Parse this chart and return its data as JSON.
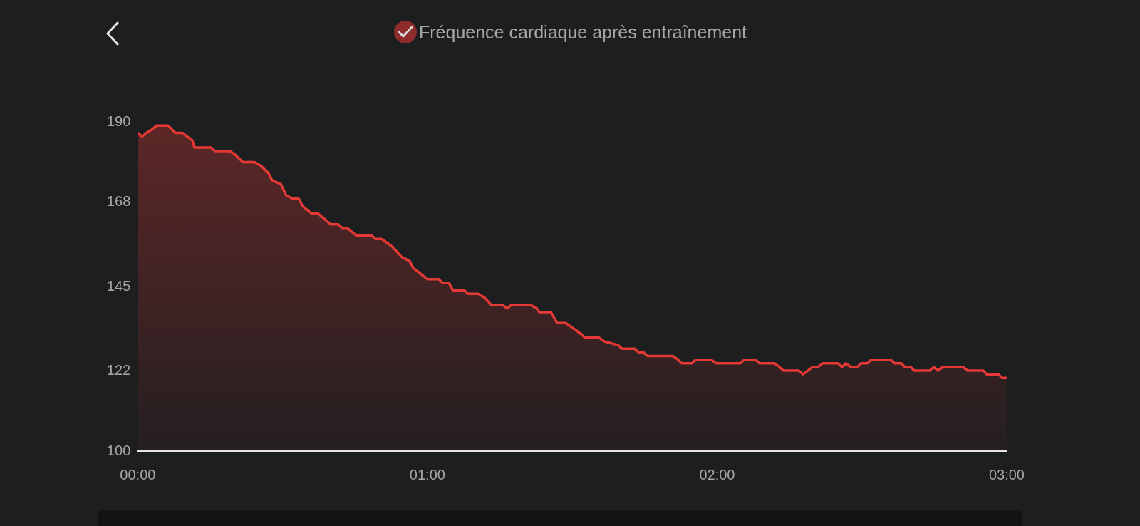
{
  "chart_data": {
    "type": "area",
    "title": "Fréquence cardiaque après entraînement",
    "x": [
      0,
      0.015,
      0.03,
      0.051,
      0.065,
      0.104,
      0.117,
      0.13,
      0.154,
      0.17,
      0.188,
      0.196,
      0.253,
      0.267,
      0.319,
      0.337,
      0.363,
      0.403,
      0.425,
      0.451,
      0.464,
      0.494,
      0.512,
      0.534,
      0.556,
      0.569,
      0.6,
      0.622,
      0.666,
      0.692,
      0.706,
      0.723,
      0.754,
      0.807,
      0.82,
      0.842,
      0.877,
      0.912,
      0.938,
      0.952,
      1,
      1.039,
      1.052,
      1.074,
      1.088,
      1.127,
      1.14,
      1.175,
      1.197,
      1.22,
      1.259,
      1.275,
      1.29,
      1.356,
      1.377,
      1.386,
      1.426,
      1.448,
      1.478,
      1.496,
      1.531,
      1.544,
      1.593,
      1.61,
      1.658,
      1.672,
      1.716,
      1.729,
      1.746,
      1.76,
      1.847,
      1.865,
      1.878,
      1.913,
      1.926,
      1.979,
      1.997,
      2.08,
      2.093,
      2.133,
      2.146,
      2.198,
      2.216,
      2.229,
      2.282,
      2.297,
      2.313,
      2.33,
      2.348,
      2.365,
      2.418,
      2.431,
      2.444,
      2.462,
      2.484,
      2.497,
      2.519,
      2.532,
      2.599,
      2.614,
      2.636,
      2.648,
      2.669,
      2.681,
      2.734,
      2.748,
      2.763,
      2.779,
      2.849,
      2.865,
      2.919,
      2.931,
      2.972,
      2.984,
      3
    ],
    "series": [
      {
        "color": "#e53935",
        "values": [
          187,
          186,
          187,
          188,
          189,
          189,
          188,
          187,
          187,
          186,
          185,
          183,
          183,
          182,
          182,
          181,
          179,
          179,
          178,
          176,
          174,
          173,
          170,
          169,
          169,
          167,
          165,
          165,
          162,
          162,
          161,
          161,
          159,
          159,
          158,
          158,
          156,
          153,
          152,
          150,
          147,
          147,
          146,
          146,
          144,
          144,
          143,
          143,
          142,
          140,
          140,
          139,
          140,
          140,
          139,
          138,
          138,
          135,
          135,
          134,
          132,
          131,
          131,
          130,
          129,
          128,
          128,
          127,
          127,
          126,
          126,
          125,
          124,
          124,
          125,
          125,
          124,
          124,
          125,
          125,
          124,
          124,
          123,
          122,
          122,
          121,
          122,
          123,
          123,
          124,
          124,
          123,
          124,
          123,
          123,
          124,
          124,
          125,
          125,
          124,
          124,
          123,
          123,
          122,
          122,
          123,
          122,
          123,
          123,
          122,
          122,
          121,
          121,
          120,
          120
        ]
      }
    ],
    "xlim": [
      0,
      3
    ],
    "xticks": [
      {
        "value": 0,
        "label": "00:00"
      },
      {
        "value": 1,
        "label": "01:00"
      },
      {
        "value": 2,
        "label": "02:00"
      },
      {
        "value": 3,
        "label": "03:00"
      }
    ],
    "ylim": [
      100,
      190
    ],
    "yticks": [
      100,
      122,
      145,
      168,
      190
    ],
    "marker": "none",
    "line_style": "solid"
  }
}
